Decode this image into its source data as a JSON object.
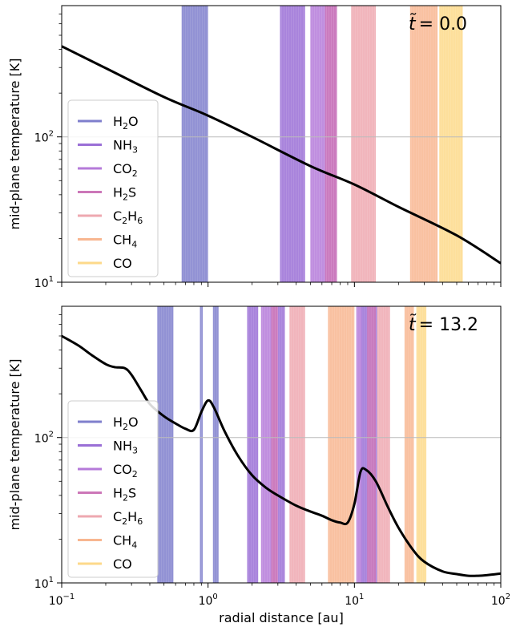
{
  "chart_data": [
    {
      "type": "line",
      "panel": "top",
      "time_label": {
        "prefix": "t̃",
        "value": "= 0.0"
      },
      "xlabel": "",
      "ylabel": "mid-plane temperature [K]",
      "xscale": "log",
      "yscale": "log",
      "xlim": [
        0.1,
        100
      ],
      "ylim": [
        10,
        800
      ],
      "reference_line_y": 100,
      "series": [
        {
          "x": [
            0.1,
            0.2,
            0.5,
            1,
            2,
            5,
            10,
            20,
            50,
            100
          ],
          "y": [
            420,
            297,
            188,
            140,
            100,
            63,
            47,
            33,
            21,
            13.5
          ]
        }
      ],
      "ice_bands": [
        {
          "species": "H2O",
          "color": "#7f7fcc",
          "x": [
            0.66,
            1.0
          ]
        },
        {
          "species": "NH3",
          "color": "#9a6fd6",
          "x": [
            3.1,
            4.6
          ]
        },
        {
          "species": "CO2",
          "color": "#b57ad9",
          "x": [
            5.0,
            7.6
          ]
        },
        {
          "species": "H2S",
          "color": "#cc77b8",
          "x": [
            6.3,
            7.6
          ]
        },
        {
          "species": "C2H6",
          "color": "#eea8b0",
          "x": [
            9.5,
            14.0
          ]
        },
        {
          "species": "CH4",
          "color": "#f8b690",
          "x": [
            24.0,
            37.0
          ]
        },
        {
          "species": "CO",
          "color": "#fdd98a",
          "x": [
            38.0,
            55.0
          ]
        }
      ]
    },
    {
      "type": "line",
      "panel": "bottom",
      "time_label": {
        "prefix": "t̃",
        "value": "= 13.2"
      },
      "xlabel": "radial distance [au]",
      "ylabel": "mid-plane temperature [K]",
      "xscale": "log",
      "yscale": "log",
      "xlim": [
        0.1,
        100
      ],
      "ylim": [
        10,
        800
      ],
      "reference_line_y": 100,
      "series": [
        {
          "x": [
            0.1,
            0.13,
            0.16,
            0.2,
            0.23,
            0.27,
            0.3,
            0.35,
            0.4,
            0.5,
            0.6,
            0.7,
            0.8,
            0.9,
            1.0,
            1.1,
            1.3,
            1.6,
            2.0,
            2.5,
            3.0,
            4.0,
            5.0,
            6.0,
            7.0,
            8.0,
            9.0,
            10.0,
            11.0,
            12.0,
            14.0,
            17.0,
            20.0,
            25.0,
            30.0,
            40.0,
            50.0,
            60.0,
            70.0,
            80.0,
            100.0
          ],
          "y": [
            500,
            430,
            370,
            320,
            305,
            300,
            270,
            210,
            170,
            140,
            125,
            115,
            113,
            150,
            180,
            160,
            110,
            75,
            55,
            45,
            40,
            34,
            31,
            29,
            27,
            26,
            26,
            35,
            58,
            60,
            50,
            33,
            24,
            17,
            14,
            12,
            11.5,
            11.2,
            11.2,
            11.3,
            11.6
          ]
        }
      ],
      "ice_bands": [
        {
          "species": "H2O",
          "color": "#7f7fcc",
          "x": [
            0.45,
            0.58
          ]
        },
        {
          "species": "H2O",
          "color": "#7f7fcc",
          "x": [
            0.88,
            0.92
          ]
        },
        {
          "species": "H2O",
          "color": "#7f7fcc",
          "x": [
            1.08,
            1.18
          ]
        },
        {
          "species": "NH3",
          "color": "#9a6fd6",
          "x": [
            1.85,
            2.2
          ]
        },
        {
          "species": "NH3",
          "color": "#9a6fd6",
          "x": [
            3.0,
            3.35
          ]
        },
        {
          "species": "CO2",
          "color": "#b57ad9",
          "x": [
            2.3,
            3.0
          ]
        },
        {
          "species": "H2S",
          "color": "#cc77b8",
          "x": [
            2.7,
            3.0
          ]
        },
        {
          "species": "C2H6",
          "color": "#eea8b0",
          "x": [
            3.6,
            4.6
          ]
        },
        {
          "species": "CH4",
          "color": "#f8b690",
          "x": [
            6.6,
            10.0
          ]
        },
        {
          "species": "NH3",
          "color": "#9a6fd6",
          "x": [
            11.0,
            14.3
          ]
        },
        {
          "species": "CO2",
          "color": "#b57ad9",
          "x": [
            10.3,
            11.2
          ]
        },
        {
          "species": "H2S",
          "color": "#cc77b8",
          "x": [
            12.2,
            14.0
          ]
        },
        {
          "species": "C2H6",
          "color": "#eea8b0",
          "x": [
            14.3,
            17.5
          ]
        },
        {
          "species": "CH4",
          "color": "#f8b690",
          "x": [
            22.0,
            25.5
          ]
        },
        {
          "species": "CO",
          "color": "#fdd98a",
          "x": [
            26.5,
            31.0
          ]
        }
      ]
    }
  ],
  "legend": {
    "placement": "center-left",
    "entries": [
      {
        "key": "H2O",
        "base": "H",
        "sub": "2",
        "rest": "O",
        "color": "#7f7fcc"
      },
      {
        "key": "NH3",
        "base": "NH",
        "sub": "3",
        "rest": "",
        "color": "#9a6fd6"
      },
      {
        "key": "CO2",
        "base": "CO",
        "sub": "2",
        "rest": "",
        "color": "#b57ad9"
      },
      {
        "key": "H2S",
        "base": "H",
        "sub": "2",
        "rest": "S",
        "color": "#cc77b8"
      },
      {
        "key": "C2H6",
        "base": "C",
        "sub": "2",
        "rest": "H",
        "sub2": "6",
        "color": "#eea8b0"
      },
      {
        "key": "CH4",
        "base": "CH",
        "sub": "4",
        "rest": "",
        "color": "#f8b690"
      },
      {
        "key": "CO",
        "base": "CO",
        "sub": "",
        "rest": "",
        "color": "#fdd98a"
      }
    ]
  },
  "x_tick_labels": [
    {
      "base": "10",
      "exp": "−1",
      "value": 0.1
    },
    {
      "base": "10",
      "exp": "0",
      "value": 1
    },
    {
      "base": "10",
      "exp": "1",
      "value": 10
    },
    {
      "base": "10",
      "exp": "2",
      "value": 100
    }
  ],
  "y_tick_labels": [
    {
      "base": "10",
      "exp": "1",
      "value": 10
    },
    {
      "base": "10",
      "exp": "2",
      "value": 100
    }
  ]
}
